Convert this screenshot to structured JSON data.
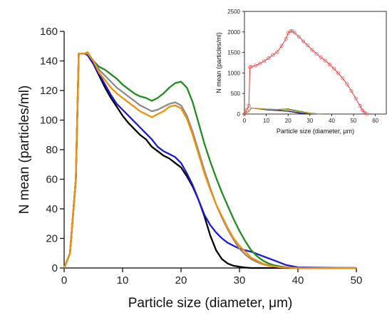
{
  "chart_data": [
    {
      "type": "line",
      "title": "",
      "xlabel": "Particle size (diameter, μm)",
      "ylabel": "N mean (particles/ml)",
      "xlim": [
        0,
        50
      ],
      "ylim": [
        0,
        160
      ],
      "xticks": [
        "0",
        "10",
        "20",
        "30",
        "40",
        "50"
      ],
      "yticks": [
        "0",
        "20",
        "40",
        "60",
        "80",
        "100",
        "120",
        "140",
        "160"
      ],
      "grid": false,
      "legend": "none",
      "series": [
        {
          "color": "#000000",
          "x": [
            0,
            1,
            2,
            2.5,
            3,
            3.5,
            4,
            5,
            6,
            7,
            8,
            9,
            10,
            11,
            12,
            13,
            14,
            15,
            16,
            17,
            18,
            19,
            20,
            21,
            22,
            23,
            24,
            25,
            26,
            27,
            28,
            29,
            30,
            31,
            32,
            33,
            35,
            40,
            50
          ],
          "y": [
            0,
            10,
            60,
            145,
            145,
            145,
            144,
            138,
            130,
            122,
            115,
            109,
            103,
            98,
            94,
            90,
            87,
            82,
            79,
            76,
            74,
            71,
            68,
            62,
            55,
            46,
            35,
            22,
            12,
            6,
            3,
            1.5,
            0.8,
            0.3,
            0,
            0,
            0,
            0,
            0
          ]
        },
        {
          "color": "#1a1adc",
          "x": [
            0,
            1,
            2,
            2.5,
            3,
            3.5,
            4,
            5,
            6,
            7,
            8,
            9,
            10,
            11,
            12,
            13,
            14,
            15,
            16,
            17,
            18,
            19,
            20,
            21,
            22,
            23,
            24,
            25,
            26,
            27,
            28,
            29,
            30,
            32,
            34,
            36,
            38,
            40,
            50
          ],
          "y": [
            0,
            10,
            60,
            145,
            145,
            145,
            144,
            138,
            131,
            124,
            117,
            111,
            107,
            103,
            99,
            95,
            91,
            87,
            82,
            79,
            77,
            75,
            71,
            64,
            56,
            46,
            36,
            29,
            24,
            20,
            17,
            15,
            13,
            11,
            8,
            5,
            2,
            0.5,
            0
          ]
        },
        {
          "color": "#1e8c1e",
          "x": [
            0,
            1,
            2,
            2.5,
            3,
            3.5,
            4,
            5,
            6,
            7,
            8,
            9,
            10,
            11,
            12,
            13,
            14,
            15,
            16,
            17,
            18,
            19,
            20,
            21,
            22,
            23,
            24,
            25,
            26,
            27,
            28,
            29,
            30,
            31,
            32,
            33,
            34,
            35,
            36,
            37,
            38,
            40,
            50
          ],
          "y": [
            0,
            10,
            60,
            145,
            145,
            145,
            145,
            140,
            136,
            134,
            131,
            128,
            124,
            121,
            118,
            116,
            115,
            113,
            115,
            118,
            122,
            125,
            126,
            122,
            112,
            98,
            84,
            72,
            61,
            51,
            42,
            33,
            25,
            18,
            12,
            8,
            5,
            3,
            1.8,
            1,
            0.5,
            0,
            0
          ]
        },
        {
          "color": "#8c8c8c",
          "x": [
            0,
            1,
            2,
            2.5,
            3,
            3.5,
            4,
            5,
            6,
            7,
            8,
            9,
            10,
            11,
            12,
            13,
            14,
            15,
            16,
            17,
            18,
            19,
            20,
            21,
            22,
            23,
            24,
            25,
            26,
            27,
            28,
            29,
            30,
            31,
            32,
            33,
            34,
            35,
            36,
            37,
            40,
            50
          ],
          "y": [
            0,
            10,
            60,
            145,
            145,
            145,
            145,
            140,
            134,
            130,
            126,
            122,
            119,
            116,
            113,
            110,
            108,
            106,
            107,
            109,
            111,
            112,
            110,
            103,
            92,
            79,
            66,
            54,
            43,
            34,
            26,
            19,
            13,
            9,
            6,
            4,
            2.5,
            1.5,
            1,
            0.5,
            0,
            0
          ]
        },
        {
          "color": "#f0900a",
          "x": [
            0,
            1,
            2,
            2.5,
            3,
            3.5,
            4,
            5,
            6,
            7,
            8,
            9,
            10,
            11,
            12,
            13,
            14,
            15,
            16,
            17,
            18,
            19,
            20,
            21,
            22,
            23,
            24,
            25,
            26,
            27,
            28,
            29,
            30,
            31,
            32,
            33,
            34,
            35,
            36,
            37,
            40,
            50
          ],
          "y": [
            0,
            10,
            60,
            145,
            145,
            145,
            146,
            140,
            132,
            127,
            122,
            118,
            115,
            112,
            109,
            106,
            104,
            102,
            104,
            106,
            109,
            110,
            108,
            101,
            90,
            77,
            64,
            53,
            43,
            35,
            27,
            20,
            15,
            11,
            7,
            5,
            3,
            1.8,
            1,
            0.5,
            0,
            0
          ]
        }
      ]
    },
    {
      "type": "line",
      "title": "",
      "xlabel": "Particle size (diameter, μm)",
      "ylabel": "N mean (particles/ml)",
      "xlim": [
        0,
        65
      ],
      "ylim": [
        0,
        2500
      ],
      "xticks": [
        "0",
        "10",
        "20",
        "30",
        "40",
        "50",
        "60"
      ],
      "yticks": [
        "0",
        "500",
        "1000",
        "1500",
        "2000",
        "2500"
      ],
      "grid": false,
      "legend": "none",
      "series": [
        {
          "color": "#e8383c",
          "x": [
            0,
            1,
            2,
            2.5,
            3,
            5,
            7,
            9,
            11,
            13,
            15,
            17,
            19,
            20,
            21,
            22,
            23,
            25,
            27,
            29,
            31,
            33,
            35,
            37,
            39,
            41,
            43,
            45,
            47,
            49,
            51,
            53,
            54,
            55,
            56
          ],
          "y": [
            0,
            100,
            200,
            1140,
            1150,
            1180,
            1230,
            1290,
            1360,
            1440,
            1510,
            1660,
            1830,
            1970,
            2020,
            2020,
            1980,
            1880,
            1770,
            1670,
            1560,
            1470,
            1380,
            1300,
            1210,
            1110,
            990,
            870,
            730,
            560,
            380,
            200,
            100,
            30,
            0
          ]
        },
        {
          "color": "#000000",
          "x": [
            0,
            2,
            3,
            5,
            10,
            20,
            25,
            30,
            35
          ],
          "y": [
            0,
            60,
            145,
            138,
            103,
            68,
            22,
            0.8,
            0
          ]
        },
        {
          "color": "#1a1adc",
          "x": [
            0,
            2,
            3,
            5,
            10,
            20,
            26,
            30,
            35
          ],
          "y": [
            0,
            60,
            145,
            138,
            107,
            71,
            24,
            13,
            3
          ]
        },
        {
          "color": "#1e8c1e",
          "x": [
            0,
            2,
            3,
            5,
            10,
            15,
            20,
            25,
            30,
            35
          ],
          "y": [
            0,
            60,
            145,
            140,
            124,
            113,
            126,
            72,
            25,
            3
          ]
        },
        {
          "color": "#8c8c8c",
          "x": [
            0,
            2,
            3,
            5,
            10,
            15,
            19,
            25,
            30,
            35
          ],
          "y": [
            0,
            60,
            145,
            140,
            119,
            106,
            112,
            54,
            13,
            1.5
          ]
        },
        {
          "color": "#f0900a",
          "x": [
            0,
            2,
            3,
            5,
            10,
            15,
            19,
            25,
            30,
            35
          ],
          "y": [
            0,
            60,
            145,
            140,
            115,
            102,
            110,
            53,
            15,
            1.8
          ]
        }
      ]
    }
  ]
}
